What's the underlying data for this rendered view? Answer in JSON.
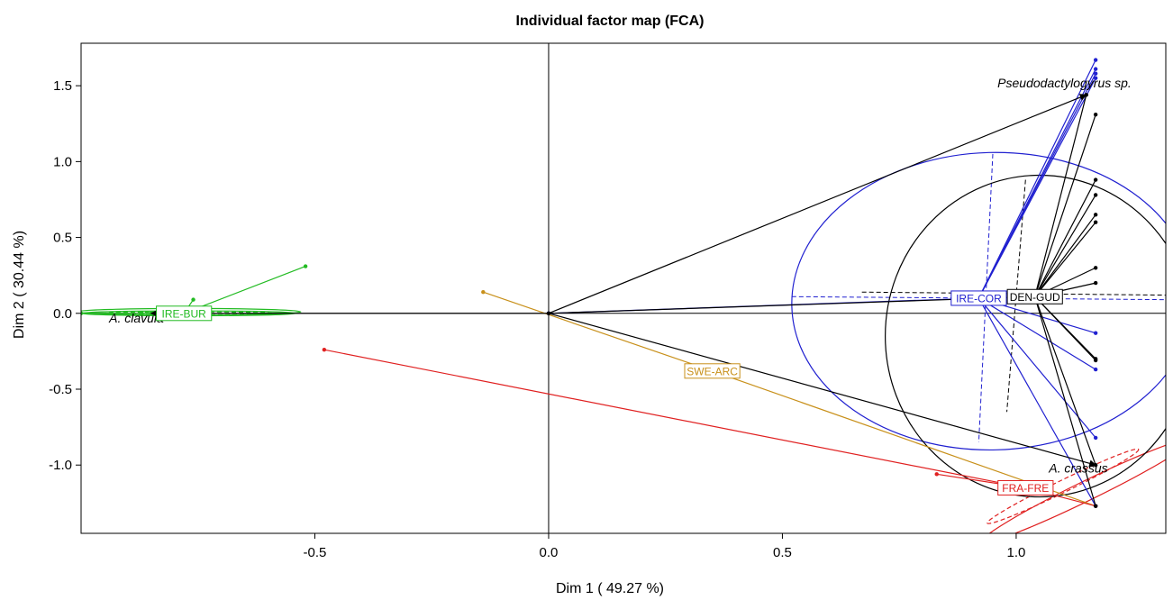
{
  "chart_data": {
    "type": "scatter",
    "title": "Individual factor map (FCA)",
    "xlabel": "Dim 1 ( 49.27 %)",
    "ylabel": "Dim 2 ( 30.44 %)",
    "xlim": [
      -1.0,
      1.32
    ],
    "ylim": [
      -1.45,
      1.78
    ],
    "x_ticks": [
      {
        "value": -0.5,
        "label": "-0.5"
      },
      {
        "value": 0.0,
        "label": "0.0"
      },
      {
        "value": 0.5,
        "label": "0.5"
      },
      {
        "value": 1.0,
        "label": "1.0"
      }
    ],
    "y_ticks": [
      {
        "value": -1.0,
        "label": "-1.0"
      },
      {
        "value": -0.5,
        "label": "-0.5"
      },
      {
        "value": 0.0,
        "label": "0.0"
      },
      {
        "value": 0.5,
        "label": "0.5"
      },
      {
        "value": 1.0,
        "label": "1.0"
      },
      {
        "value": 1.5,
        "label": "1.5"
      }
    ],
    "species": [
      {
        "label": "A. clavula",
        "x": -0.85,
        "y": 0.0,
        "label_x": -0.94,
        "label_y": -0.06
      },
      {
        "label": "Pseudodactylogyrus sp.",
        "x": 1.15,
        "y": 1.44,
        "label_x": 0.96,
        "label_y": 1.49
      },
      {
        "label": "A. crassus",
        "x": 1.17,
        "y": -1.0,
        "label_x": 1.07,
        "label_y": -1.05
      }
    ],
    "groups": [
      {
        "label": "IRE-BUR",
        "color": "#22bb22",
        "center": [
          -0.78,
          0.0
        ],
        "points": [
          [
            -0.52,
            0.31
          ],
          [
            -0.76,
            0.09
          ],
          [
            -0.87,
            0.0
          ],
          [
            -0.85,
            0.0
          ],
          [
            -1.0,
            0.0
          ]
        ],
        "ellipses": [
          {
            "cx": -0.77,
            "cy": 0.01,
            "rx": 0.24,
            "ry": 0.022,
            "angle": 0,
            "dashed": false
          },
          {
            "cx": -0.77,
            "cy": 0.0,
            "rx": 0.23,
            "ry": 0.016,
            "angle": 0,
            "dashed": false
          },
          {
            "cx": -0.77,
            "cy": 0.0,
            "rx": 0.18,
            "ry": 0.01,
            "angle": 0,
            "dashed": true
          }
        ]
      },
      {
        "label": "SWE-ARC",
        "color": "#c8901a",
        "center": [
          0.35,
          -0.38
        ],
        "points": [
          [
            -0.14,
            0.14
          ],
          [
            1.17,
            -1.27
          ]
        ],
        "ellipses": []
      },
      {
        "label": "FRA-FRE",
        "color": "#e02020",
        "center": [
          1.02,
          -1.15
        ],
        "points": [
          [
            -0.48,
            -0.24
          ],
          [
            0.83,
            -1.06
          ],
          [
            0.97,
            -1.15
          ],
          [
            1.17,
            -1.27
          ]
        ],
        "ellipses": [
          {
            "cx": 1.15,
            "cy": -1.17,
            "rx": 0.25,
            "ry": 0.065,
            "angle": -26,
            "dashed": false
          },
          {
            "cx": 1.1,
            "cy": -1.14,
            "rx": 0.18,
            "ry": 0.04,
            "angle": -26,
            "dashed": true
          }
        ]
      },
      {
        "label": "IRE-COR",
        "color": "#2020d0",
        "center": [
          0.92,
          0.1
        ],
        "points": [
          [
            1.17,
            1.67
          ],
          [
            1.17,
            1.61
          ],
          [
            1.17,
            1.58
          ],
          [
            1.17,
            1.55
          ],
          [
            1.17,
            -0.13
          ],
          [
            1.17,
            -0.37
          ],
          [
            1.17,
            -0.82
          ],
          [
            1.17,
            -1.27
          ],
          [
            0.0,
            0.0
          ]
        ],
        "ellipses": [
          {
            "cx": 0.95,
            "cy": 0.08,
            "rx": 0.43,
            "ry": 0.98,
            "angle": -1.5,
            "dashed": false
          }
        ],
        "axes_dashed": [
          [
            [
              0.52,
              0.11
            ],
            [
              1.32,
              0.09
            ]
          ],
          [
            [
              0.95,
              1.05
            ],
            [
              0.92,
              -0.85
            ]
          ]
        ]
      },
      {
        "label": "DEN-GUD",
        "color": "#000000",
        "center": [
          1.04,
          0.11
        ],
        "points": [
          [
            1.15,
            1.44
          ],
          [
            1.17,
            1.31
          ],
          [
            1.17,
            0.88
          ],
          [
            1.17,
            0.78
          ],
          [
            1.17,
            0.65
          ],
          [
            1.17,
            0.6
          ],
          [
            1.17,
            0.3
          ],
          [
            1.17,
            0.2
          ],
          [
            1.17,
            -0.3
          ],
          [
            1.17,
            -0.31
          ],
          [
            1.17,
            -1.0
          ],
          [
            1.17,
            -1.27
          ],
          [
            0.0,
            0.0
          ]
        ],
        "ellipses": [
          {
            "cx": 1.05,
            "cy": -0.15,
            "rx": 0.33,
            "ry": 1.06,
            "angle": 0,
            "dashed": false
          }
        ],
        "axes_dashed": [
          [
            [
              0.67,
              0.14
            ],
            [
              1.32,
              0.12
            ]
          ],
          [
            [
              1.02,
              0.88
            ],
            [
              0.98,
              -0.65
            ]
          ]
        ]
      }
    ]
  }
}
